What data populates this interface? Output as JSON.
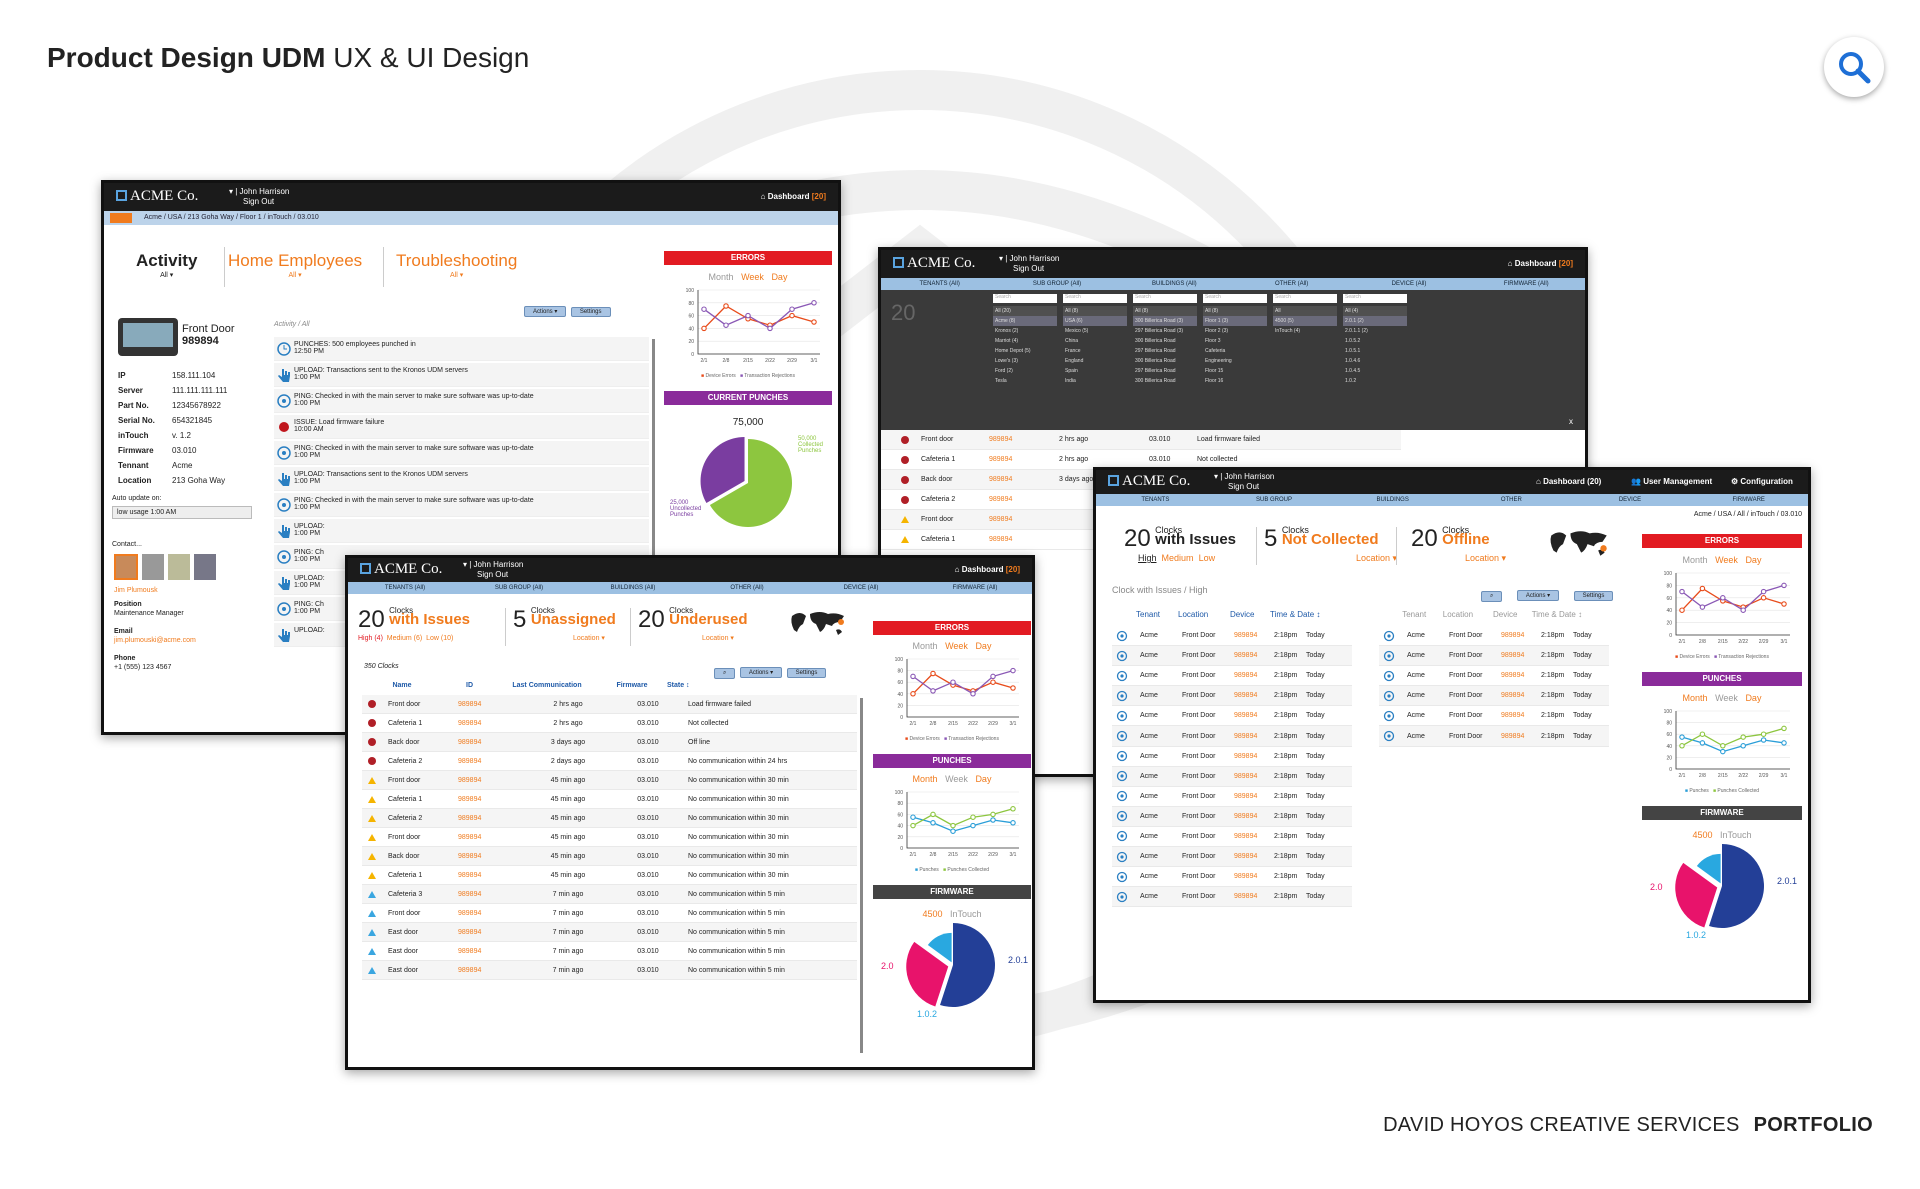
{
  "header": {
    "title_bold": "Product Design UDM",
    "title_rest": "UX & UI Design"
  },
  "footer": {
    "studio": "DAVID HOYOS CREATIVE SERVICES",
    "portfolio": "PORTFOLIO"
  },
  "colors": {
    "accent": "#f07b1e",
    "error": "#e21b22",
    "punches": "#8a2b9a",
    "nav": "#1b1b1b",
    "tab": "#9cc0e2"
  },
  "common": {
    "logo": "ACME Co.",
    "user_name": "▾ | John Harrison",
    "sign_out": "Sign Out",
    "dashboard": "Dashboard",
    "dashboard_count": "[20]",
    "dashboard_count_alt": "(20)",
    "month": "Month",
    "week": "Week",
    "day": "Day",
    "errors": "ERRORS",
    "punches": "PUNCHES",
    "current_punches": "CURRENT PUNCHES",
    "firmware": "FIRMWARE",
    "device_errors": "Device Errors",
    "transaction_rejections": "Transaction Rejections",
    "punches_legend": "Punches",
    "punches_collected": "Punches Collected",
    "actions": "Actions ▾",
    "settings": "Settings",
    "x_labels": [
      "2/1",
      "2/8",
      "2/15",
      "2/22",
      "2/29",
      "3/1"
    ],
    "y_labels": [
      "100",
      "80",
      "60",
      "40",
      "20",
      "0"
    ]
  },
  "screen1": {
    "crumb": "Acme / USA / 213 Goha Way / Floor 1 / inTouch / 03.010",
    "tab_activity": "Activity",
    "tab_home": "Home Employees",
    "tab_trouble": "Troubleshooting",
    "all": "All ▾",
    "device_name": "Front Door",
    "device_id": "989894",
    "props": [
      {
        "k": "IP",
        "v": "158.111.104"
      },
      {
        "k": "Server",
        "v": "111.111.111.111"
      },
      {
        "k": "Part No.",
        "v": "12345678922"
      },
      {
        "k": "Serial No.",
        "v": "654321845"
      },
      {
        "k": "inTouch",
        "v": "v. 1.2"
      },
      {
        "k": "Firmware",
        "v": "03.010"
      },
      {
        "k": "Tennant",
        "v": "Acme"
      },
      {
        "k": "Location",
        "v": "213 Goha Way"
      }
    ],
    "auto_update": "Auto update on:",
    "auto_value": "low usage 1:00 AM",
    "contact": "Contact...",
    "contact_name": "Jim Plumousk",
    "position_label": "Position",
    "position": "Maintenance Manager",
    "email_label": "Email",
    "email": "jim.plumouski@acme.com",
    "phone_label": "Phone",
    "phone": "+1 (555) 123 4567",
    "activity_path": "Activity / All",
    "activities": [
      {
        "t": "PUNCHES:  500 employees punched in",
        "time": "12:50 PM",
        "k": "clock"
      },
      {
        "t": "UPLOAD:  Transactions sent to the Kronos UDM servers",
        "time": "1:00 PM",
        "k": "hand"
      },
      {
        "t": "PING:  Checked in with the main server to make sure software was up-to-date",
        "time": "1:00 PM",
        "k": "ping"
      },
      {
        "t": "ISSUE:  Load firmware failure",
        "time": "10:00 AM",
        "k": "dot"
      },
      {
        "t": "PING:  Checked in with the main server to make sure software was up-to-date",
        "time": "1:00 PM",
        "k": "ping"
      },
      {
        "t": "UPLOAD:  Transactions sent to the Kronos UDM servers",
        "time": "1:00 PM",
        "k": "hand"
      },
      {
        "t": "PING:  Checked in with the main server to make sure software was up-to-date",
        "time": "1:00 PM",
        "k": "ping"
      },
      {
        "t": "UPLOAD:",
        "time": "1:00 PM",
        "k": "hand"
      },
      {
        "t": "PING:  Ch",
        "time": "1:00 PM",
        "k": "ping"
      },
      {
        "t": "UPLOAD:",
        "time": "1:00 PM",
        "k": "hand"
      },
      {
        "t": "PING:  Ch",
        "time": "1:00 PM",
        "k": "ping"
      },
      {
        "t": "UPLOAD:",
        "time": "",
        "k": "hand"
      }
    ],
    "cp_total": "75,000",
    "cp_collected": "50,000\nCollected\nPunches",
    "cp_uncollected": "25,000\nUncollected\nPunches"
  },
  "screen2": {
    "tabs": [
      "TENANTS (All)",
      "SUB GROUP (All)",
      "BUILDINGS (All)",
      "OTHER (All)",
      "DEVICE (All)",
      "FIRMWARE (All)"
    ],
    "count_hidden": "20",
    "clocks_word": "Clocks",
    "with_word": "with",
    "count_total": "350 Clocks",
    "filter_cols": [
      [
        "All (20)",
        "Acme (8)",
        "Kronos (2)",
        "Marriot (4)",
        "Home Depot (5)",
        "Lowe's (3)",
        "Ford (2)",
        "Tesla"
      ],
      [
        "All (8)",
        "USA (6)",
        "Mexico (5)",
        "China",
        "France",
        "England",
        "Spain",
        "India"
      ],
      [
        "All (8)",
        "300 Billerica Road (3)",
        "297 Billerica Road (3)",
        "300 Billerica Road",
        "297 Billerica Road",
        "300 Billerica Road",
        "297 Billerica Road",
        "300 Billerica Road"
      ],
      [
        "All (8)",
        "Floor 1 (3)",
        "Floor 2 (3)",
        "Floor 3",
        "Cafeteria",
        "Engineering",
        "Floor 15",
        "Floor 16"
      ],
      [
        "All",
        "4500 (5)",
        "InTouch (4)"
      ],
      [
        "All (4)",
        "2.0.1 (2)",
        "2.0.1.1 (2)",
        "1.0.5.2",
        "1.0.5.1",
        "1.0.4.6",
        "1.0.4.5",
        "1.0.2"
      ]
    ],
    "search": "Search",
    "rows": [
      {
        "s": "dot",
        "name": "Front door",
        "id": "989894",
        "last": "2 hrs ago",
        "fw": "03.010",
        "state": "Load firmware failed"
      },
      {
        "s": "dot",
        "name": "Cafeteria 1",
        "id": "989894",
        "last": "2 hrs ago",
        "fw": "03.010",
        "state": "Not collected"
      },
      {
        "s": "dot",
        "name": "Back door",
        "id": "989894",
        "last": "3 days ago",
        "fw": "03.010",
        "state": "Off line"
      },
      {
        "s": "dot",
        "name": "Cafeteria 2",
        "id": "989894",
        "last": "",
        "fw": "",
        "state": ""
      },
      {
        "s": "tri",
        "name": "Front door",
        "id": "989894",
        "last": "",
        "fw": "",
        "state": ""
      },
      {
        "s": "tri",
        "name": "Cafeteria 1",
        "id": "989894",
        "last": "",
        "fw": "",
        "state": ""
      }
    ],
    "close": "x"
  },
  "screen3": {
    "tabs": [
      "TENANTS (All)",
      "SUB GROUP (All)",
      "BUILDINGS (All)",
      "OTHER (All)",
      "DEVICE (All)",
      "FIRMWARE (All)"
    ],
    "issues_n": "20",
    "issues_word": "with Issues",
    "high": "High (4)",
    "medium": "Medium (6)",
    "low": "Low (10)",
    "unassigned_n": "5",
    "unassigned_word": "Unassigned",
    "underused_n": "20",
    "underused_word": "Underused",
    "clocks": "Clocks",
    "location": "Location ▾",
    "count": "350 Clocks",
    "cols": [
      "Name",
      "ID",
      "Last Communication",
      "Firmware",
      "State ↕"
    ],
    "rows": [
      {
        "s": "dot",
        "name": "Front door",
        "id": "989894",
        "last": "2 hrs ago",
        "fw": "03.010",
        "state": "Load firmware failed"
      },
      {
        "s": "dot",
        "name": "Cafeteria 1",
        "id": "989894",
        "last": "2 hrs ago",
        "fw": "03.010",
        "state": "Not collected"
      },
      {
        "s": "dot",
        "name": "Back door",
        "id": "989894",
        "last": "3 days ago",
        "fw": "03.010",
        "state": "Off line"
      },
      {
        "s": "dot",
        "name": "Cafeteria 2",
        "id": "989894",
        "last": "2 days ago",
        "fw": "03.010",
        "state": "No communication within 24 hrs"
      },
      {
        "s": "tri",
        "name": "Front door",
        "id": "989894",
        "last": "45 min ago",
        "fw": "03.010",
        "state": "No communication within 30 min"
      },
      {
        "s": "tri",
        "name": "Cafeteria 1",
        "id": "989894",
        "last": "45 min ago",
        "fw": "03.010",
        "state": "No communication within 30 min"
      },
      {
        "s": "tri",
        "name": "Cafeteria 2",
        "id": "989894",
        "last": "45 min ago",
        "fw": "03.010",
        "state": "No communication within 30 min"
      },
      {
        "s": "tri",
        "name": "Front door",
        "id": "989894",
        "last": "45 min ago",
        "fw": "03.010",
        "state": "No communication within 30 min"
      },
      {
        "s": "tri",
        "name": "Back door",
        "id": "989894",
        "last": "45 min ago",
        "fw": "03.010",
        "state": "No communication within 30 min"
      },
      {
        "s": "tri",
        "name": "Cafeteria 1",
        "id": "989894",
        "last": "45 min ago",
        "fw": "03.010",
        "state": "No communication within 30 min"
      },
      {
        "s": "blue",
        "name": "Cafeteria 3",
        "id": "989894",
        "last": "7 min ago",
        "fw": "03.010",
        "state": "No communication within 5 min"
      },
      {
        "s": "blue",
        "name": "Front door",
        "id": "989894",
        "last": "7 min ago",
        "fw": "03.010",
        "state": "No communication within 5 min"
      },
      {
        "s": "blue",
        "name": "East door",
        "id": "989894",
        "last": "7 min ago",
        "fw": "03.010",
        "state": "No communication within 5 min"
      },
      {
        "s": "blue",
        "name": "East door",
        "id": "989894",
        "last": "7 min ago",
        "fw": "03.010",
        "state": "No communication within 5 min"
      },
      {
        "s": "blue",
        "name": "East door",
        "id": "989894",
        "last": "7 min ago",
        "fw": "03.010",
        "state": "No communication within 5 min"
      }
    ],
    "fw_4500": "4500",
    "fw_intouch": "InTouch",
    "fw_20": "2.0",
    "fw_201": "2.0.1",
    "fw_102": "1.0.2"
  },
  "screen4": {
    "user_mgmt": "User Management",
    "configuration": "Configuration",
    "tabs": [
      "TENANTS",
      "SUB GROUP",
      "BUILDINGS",
      "OTHER",
      "DEVICE",
      "FIRMWARE"
    ],
    "crumb": "Acme / USA / All / inTouch / 03.010",
    "issues_n": "20",
    "issues_word": "with Issues",
    "high": "High",
    "medium": "Medium",
    "low": "Low",
    "nc_n": "5",
    "nc_word": "Not Collected",
    "off_n": "20",
    "off_word": "Offline",
    "clocks": "Clocks",
    "location": "Location ▾",
    "sub": "Clock with Issues / High",
    "cols": [
      "Tenant",
      "Location",
      "Device",
      "Time & Date ↕"
    ],
    "row": {
      "tenant": "Acme",
      "loc": "Front Door",
      "dev": "989894",
      "time": "2:18pm",
      "date": "Today"
    },
    "left_rows": 14,
    "right_rows": 6,
    "fw_4500": "4500",
    "fw_intouch": "InTouch",
    "fw_20": "2.0",
    "fw_201": "2.0.1",
    "fw_102": "1.0.2"
  },
  "chart_data": [
    {
      "type": "line",
      "title": "ERRORS",
      "categories": [
        "2/1",
        "2/8",
        "2/15",
        "2/22",
        "2/29",
        "3/1"
      ],
      "ylim": [
        0,
        100
      ],
      "series": [
        {
          "name": "Device Errors",
          "values": [
            40,
            75,
            55,
            45,
            60,
            50
          ]
        },
        {
          "name": "Transaction Rejections",
          "values": [
            70,
            45,
            60,
            40,
            70,
            80
          ]
        }
      ]
    },
    {
      "type": "pie",
      "title": "CURRENT PUNCHES",
      "categories": [
        "Collected Punches",
        "Uncollected Punches"
      ],
      "values": [
        50000,
        25000
      ]
    },
    {
      "type": "line",
      "title": "PUNCHES",
      "categories": [
        "2/1",
        "2/8",
        "2/15",
        "2/22",
        "2/29",
        "3/1"
      ],
      "ylim": [
        0,
        100
      ],
      "series": [
        {
          "name": "Punches",
          "values": [
            55,
            45,
            30,
            40,
            50,
            45
          ]
        },
        {
          "name": "Punches Collected",
          "values": [
            40,
            60,
            40,
            55,
            60,
            70
          ]
        }
      ]
    },
    {
      "type": "pie",
      "title": "FIRMWARE",
      "categories": [
        "2.0.1",
        "2.0",
        "1.0.2"
      ],
      "values": [
        55,
        30,
        15
      ]
    }
  ]
}
